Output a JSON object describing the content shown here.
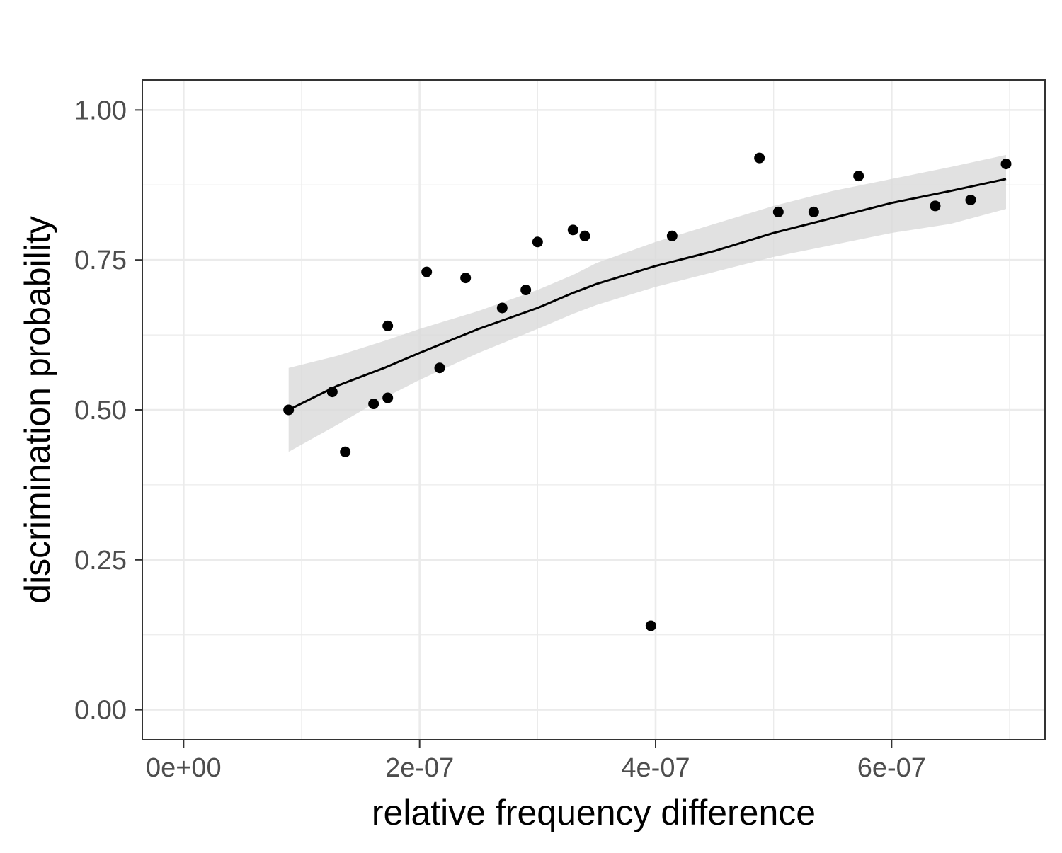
{
  "chart_data": {
    "type": "scatter",
    "xlabel": "relative frequency difference",
    "ylabel": "discrimination probability",
    "xlim": [
      -3.5e-08,
      7.3e-07
    ],
    "ylim": [
      -0.05,
      1.05
    ],
    "x_ticks": [
      {
        "value": 0,
        "label": "0e+00"
      },
      {
        "value": 2e-07,
        "label": "2e-07"
      },
      {
        "value": 4e-07,
        "label": "4e-07"
      },
      {
        "value": 6e-07,
        "label": "6e-07"
      }
    ],
    "x_minor_ticks": [
      1e-07,
      3e-07,
      5e-07,
      7e-07
    ],
    "y_ticks": [
      {
        "value": 0,
        "label": "0.00"
      },
      {
        "value": 0.25,
        "label": "0.25"
      },
      {
        "value": 0.5,
        "label": "0.50"
      },
      {
        "value": 0.75,
        "label": "0.75"
      },
      {
        "value": 1.0,
        "label": "1.00"
      }
    ],
    "y_minor_ticks": [
      0.125,
      0.375,
      0.625,
      0.875
    ],
    "grid": true,
    "points": [
      {
        "x": 8.9e-08,
        "y": 0.5
      },
      {
        "x": 1.26e-07,
        "y": 0.53
      },
      {
        "x": 1.37e-07,
        "y": 0.43
      },
      {
        "x": 1.61e-07,
        "y": 0.51
      },
      {
        "x": 1.73e-07,
        "y": 0.64
      },
      {
        "x": 1.73e-07,
        "y": 0.52
      },
      {
        "x": 2.06e-07,
        "y": 0.73
      },
      {
        "x": 2.17e-07,
        "y": 0.57
      },
      {
        "x": 2.39e-07,
        "y": 0.72
      },
      {
        "x": 2.7e-07,
        "y": 0.67
      },
      {
        "x": 2.9e-07,
        "y": 0.7
      },
      {
        "x": 3e-07,
        "y": 0.78
      },
      {
        "x": 3.3e-07,
        "y": 0.8
      },
      {
        "x": 3.4e-07,
        "y": 0.79
      },
      {
        "x": 3.96e-07,
        "y": 0.14
      },
      {
        "x": 4.14e-07,
        "y": 0.79
      },
      {
        "x": 4.88e-07,
        "y": 0.92
      },
      {
        "x": 5.04e-07,
        "y": 0.83
      },
      {
        "x": 5.34e-07,
        "y": 0.83
      },
      {
        "x": 5.72e-07,
        "y": 0.89
      },
      {
        "x": 6.37e-07,
        "y": 0.84
      },
      {
        "x": 6.67e-07,
        "y": 0.85
      },
      {
        "x": 6.97e-07,
        "y": 0.91
      }
    ],
    "fit_line": {
      "x": [
        8.9e-08,
        1.3e-07,
        1.7e-07,
        2e-07,
        2.5e-07,
        3e-07,
        3.3e-07,
        3.5e-07,
        4e-07,
        4.5e-07,
        5e-07,
        5.5e-07,
        6e-07,
        6.5e-07,
        6.97e-07
      ],
      "y": [
        0.5,
        0.54,
        0.57,
        0.595,
        0.635,
        0.67,
        0.695,
        0.71,
        0.74,
        0.765,
        0.795,
        0.82,
        0.845,
        0.865,
        0.885
      ],
      "ci_low": [
        0.43,
        0.475,
        0.52,
        0.55,
        0.595,
        0.635,
        0.66,
        0.675,
        0.705,
        0.73,
        0.755,
        0.775,
        0.795,
        0.81,
        0.835
      ],
      "ci_high": [
        0.57,
        0.59,
        0.615,
        0.635,
        0.665,
        0.7,
        0.725,
        0.745,
        0.78,
        0.81,
        0.84,
        0.865,
        0.885,
        0.905,
        0.925
      ]
    },
    "colors": {
      "points": "#000000",
      "line": "#000000",
      "ribbon": "#d9d9d9",
      "grid": "#ebebeb",
      "border": "#333333",
      "tick_text": "#4d4d4d"
    }
  }
}
